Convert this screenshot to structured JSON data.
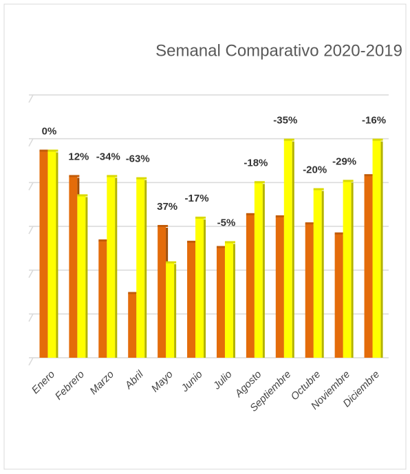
{
  "chart_data": {
    "type": "bar",
    "title": "Semanal Comparativo 2020-2019",
    "categories": [
      "Enero",
      "Febrero",
      "Marzo",
      "Abril",
      "Mayo",
      "Junio",
      "Julio",
      "Agosto",
      "Septiembre",
      "Octubre",
      "Noviembre",
      "Diciembre"
    ],
    "series": [
      {
        "color": "#e46c0a",
        "values": [
          4.72,
          4.14,
          2.67,
          1.47,
          3.0,
          2.64,
          2.52,
          3.27,
          3.22,
          3.06,
          2.83,
          4.16
        ]
      },
      {
        "color": "#ffff00",
        "values": [
          4.72,
          3.7,
          4.14,
          4.09,
          2.17,
          3.19,
          2.63,
          4.0,
          4.97,
          3.84,
          4.03,
          4.97
        ]
      }
    ],
    "labels": [
      "0%",
      "12%",
      "-34%",
      "-63%",
      "37%",
      "-17%",
      "-5%",
      "-18%",
      "-35%",
      "-20%",
      "-29%",
      "-16%"
    ],
    "ylim": [
      0,
      6
    ],
    "yticks": [
      0,
      1,
      2,
      3,
      4,
      5,
      6
    ],
    "grid": true
  }
}
